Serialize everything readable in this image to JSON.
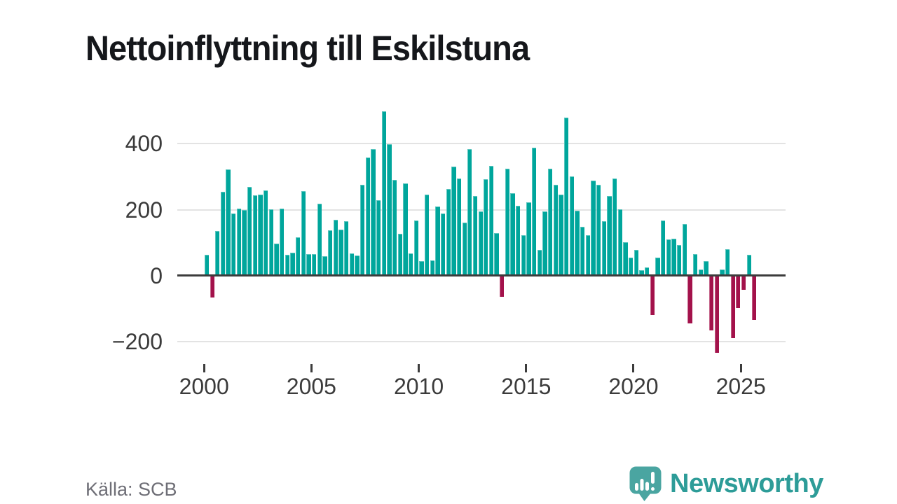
{
  "title": "Nettoinflyttning till Eskilstuna",
  "source": {
    "label": "Källa: SCB"
  },
  "brand": {
    "name": "Newsworthy",
    "icon": "speech-bubble-bar-chart-exclamation",
    "icon_color": "#4aa5a1",
    "text_color": "#2d9c98"
  },
  "chart_data": {
    "type": "bar",
    "title": "Nettoinflyttning till Eskilstuna",
    "xlabel": "",
    "ylabel": "",
    "legend": false,
    "grid": true,
    "ylim": [
      -250,
      515
    ],
    "bar_color_positive": "#00a69c",
    "bar_color_negative": "#a3124b",
    "yticks": [
      {
        "label": "400",
        "value": 400
      },
      {
        "label": "200",
        "value": 200
      },
      {
        "label": "0",
        "value": 0
      },
      {
        "label": "−200",
        "value": -200
      }
    ],
    "xticks": [
      {
        "label": "2000",
        "year": 2000
      },
      {
        "label": "2005",
        "year": 2005
      },
      {
        "label": "2010",
        "year": 2010
      },
      {
        "label": "2015",
        "year": 2015
      },
      {
        "label": "2020",
        "year": 2020
      },
      {
        "label": "2025",
        "year": 2025
      }
    ],
    "categories": [
      "2000 Q1",
      "2000 Q2",
      "2000 Q3",
      "2000 Q4",
      "2001 Q1",
      "2001 Q2",
      "2001 Q3",
      "2001 Q4",
      "2002 Q1",
      "2002 Q2",
      "2002 Q3",
      "2002 Q4",
      "2003 Q1",
      "2003 Q2",
      "2003 Q3",
      "2003 Q4",
      "2004 Q1",
      "2004 Q2",
      "2004 Q3",
      "2004 Q4",
      "2005 Q1",
      "2005 Q2",
      "2005 Q3",
      "2005 Q4",
      "2006 Q1",
      "2006 Q2",
      "2006 Q3",
      "2006 Q4",
      "2007 Q1",
      "2007 Q2",
      "2007 Q3",
      "2007 Q4",
      "2008 Q1",
      "2008 Q2",
      "2008 Q3",
      "2008 Q4",
      "2009 Q1",
      "2009 Q2",
      "2009 Q3",
      "2009 Q4",
      "2010 Q1",
      "2010 Q2",
      "2010 Q3",
      "2010 Q4",
      "2011 Q1",
      "2011 Q2",
      "2011 Q3",
      "2011 Q4",
      "2012 Q1",
      "2012 Q2",
      "2012 Q3",
      "2012 Q4",
      "2013 Q1",
      "2013 Q2",
      "2013 Q3",
      "2013 Q4",
      "2014 Q1",
      "2014 Q2",
      "2014 Q3",
      "2014 Q4",
      "2015 Q1",
      "2015 Q2",
      "2015 Q3",
      "2015 Q4",
      "2016 Q1",
      "2016 Q2",
      "2016 Q3",
      "2016 Q4",
      "2017 Q1",
      "2017 Q2",
      "2017 Q3",
      "2017 Q4",
      "2018 Q1",
      "2018 Q2",
      "2018 Q3",
      "2018 Q4",
      "2019 Q1",
      "2019 Q2",
      "2019 Q3",
      "2019 Q4",
      "2020 Q1",
      "2020 Q2",
      "2020 Q3",
      "2020 Q4",
      "2021 Q1",
      "2021 Q2",
      "2021 Q3",
      "2021 Q4",
      "2022 Q1",
      "2022 Q2",
      "2022 Q3",
      "2022 Q4",
      "2023 Q1",
      "2023 Q2",
      "2023 Q3",
      "2023 Q4",
      "2024 Q1",
      "2024 Q2",
      "2024 Q3",
      "2024 Q4",
      "2025 Q1",
      "2025 Q2",
      "2025 Q3"
    ],
    "values": [
      60,
      -62,
      132,
      252,
      319,
      185,
      201,
      196,
      265,
      240,
      242,
      256,
      199,
      95,
      200,
      60,
      67,
      113,
      254,
      63,
      62,
      215,
      55,
      134,
      166,
      137,
      163,
      65,
      58,
      273,
      355,
      380,
      226,
      495,
      396,
      288,
      124,
      276,
      65,
      165,
      42,
      242,
      44,
      206,
      185,
      259,
      327,
      291,
      158,
      380,
      238,
      192,
      290,
      330,
      125,
      -61,
      321,
      247,
      208,
      119,
      220,
      385,
      76,
      191,
      321,
      272,
      242,
      476,
      298,
      194,
      144,
      119,
      284,
      273,
      162,
      238,
      292,
      199,
      99,
      52,
      76,
      14,
      23,
      -115,
      51,
      164,
      106,
      110,
      90,
      153,
      -142,
      63,
      15,
      42,
      -163,
      -230,
      15,
      78,
      -185,
      -95,
      -40,
      60,
      -130
    ]
  }
}
